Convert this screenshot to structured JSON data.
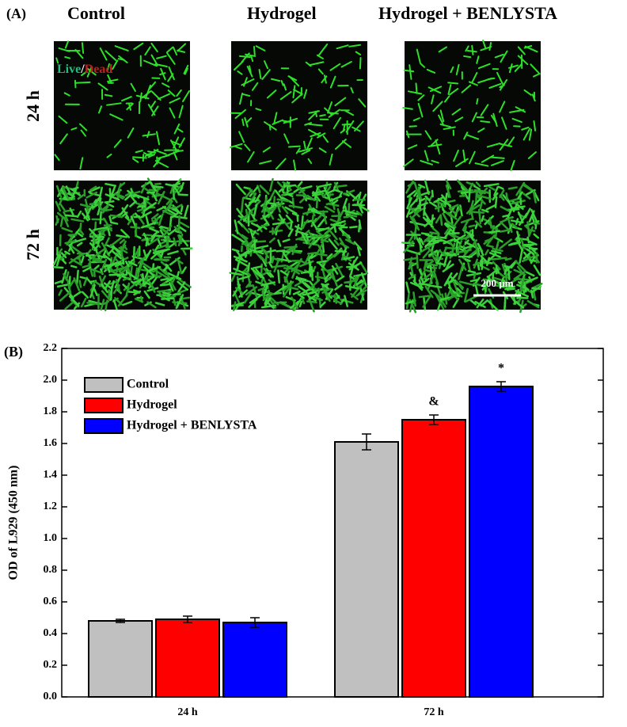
{
  "panel_a": {
    "label": "(A)",
    "columns": [
      "Control",
      "Hydrogel",
      "Hydrogel + BENLYSTA"
    ],
    "rows": [
      "24 h",
      "72 h"
    ],
    "stain": {
      "live": "Live",
      "separator": "/",
      "dead": "Dead"
    },
    "scale_bar": "200 µm"
  },
  "chart_data": {
    "type": "bar",
    "panel_label": "(B)",
    "ylabel": "OD of L929 (450 nm)",
    "categories": [
      "24 h",
      "72 h"
    ],
    "series": [
      {
        "name": "Control",
        "color": "#c0c0c0",
        "values": [
          0.48,
          1.61
        ],
        "errors": [
          0.01,
          0.05
        ],
        "significance": [
          null,
          null
        ]
      },
      {
        "name": "Hydrogel",
        "color": "#ff0000",
        "values": [
          0.49,
          1.75
        ],
        "errors": [
          0.02,
          0.03
        ],
        "significance": [
          null,
          "&"
        ]
      },
      {
        "name": "Hydrogel + BENLYSTA",
        "color": "#0000ff",
        "values": [
          0.47,
          1.96
        ],
        "errors": [
          0.03,
          0.03
        ],
        "significance": [
          null,
          "*"
        ]
      }
    ],
    "ylim": [
      0,
      2.2
    ],
    "yticks": [
      {
        "value": 0,
        "label": "0.0"
      },
      0.2,
      0.4,
      0.6,
      0.8,
      {
        "value": 1,
        "label": "1.0"
      },
      1.2,
      1.4,
      1.6,
      1.8,
      {
        "value": 2,
        "label": "2.0"
      },
      2.2
    ],
    "legend": "upper-left"
  }
}
